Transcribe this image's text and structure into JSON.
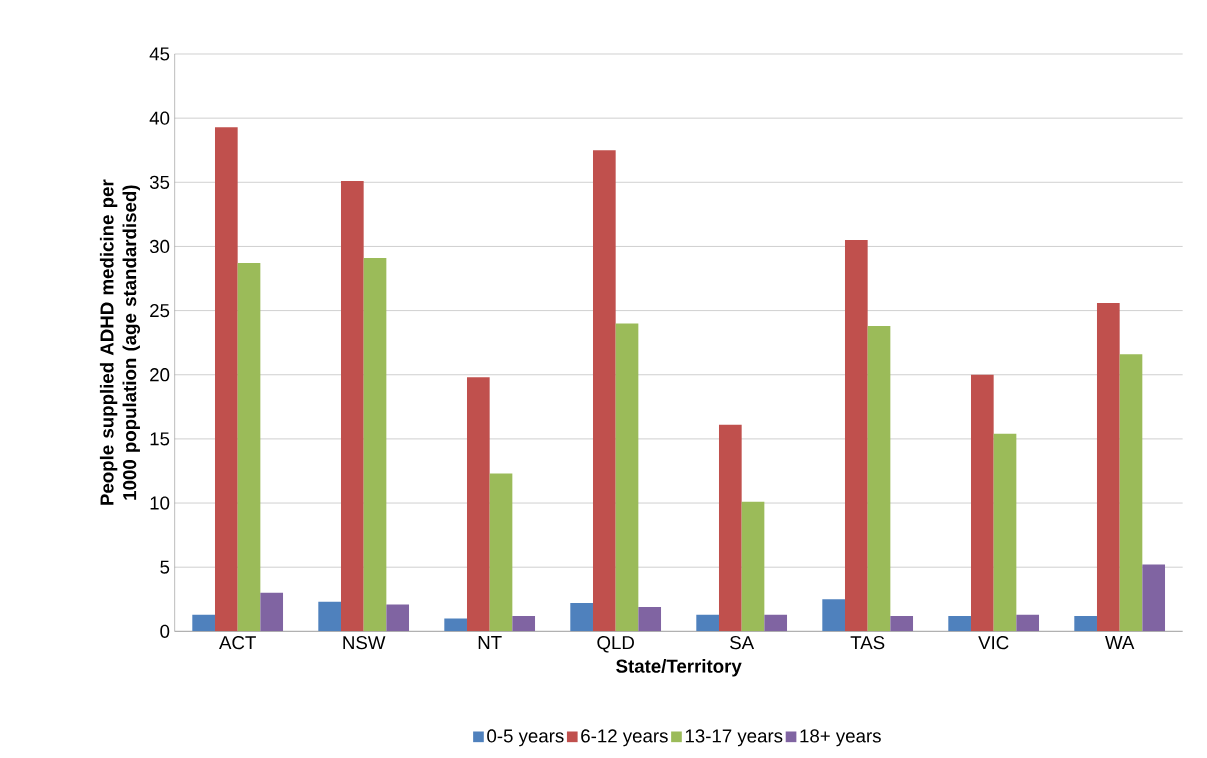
{
  "chart_data": {
    "type": "bar",
    "xlabel": "State/Territory",
    "ylabel": "People supplied ADHD medicine per 1000 population (age standardised)",
    "categories": [
      "ACT",
      "NSW",
      "NT",
      "QLD",
      "SA",
      "TAS",
      "VIC",
      "WA"
    ],
    "series": [
      {
        "name": "0-5 years",
        "color": "#4f81bd",
        "values": [
          1.3,
          2.3,
          1.0,
          2.2,
          1.3,
          2.5,
          1.2,
          1.2
        ]
      },
      {
        "name": "6-12 years",
        "color": "#c0504d",
        "values": [
          39.3,
          35.1,
          19.8,
          37.5,
          16.1,
          30.5,
          20.0,
          25.6
        ]
      },
      {
        "name": "13-17 years",
        "color": "#9bbb59",
        "values": [
          28.7,
          29.1,
          12.3,
          24.0,
          10.1,
          23.8,
          15.4,
          21.6
        ]
      },
      {
        "name": "18+ years",
        "color": "#8064a2",
        "values": [
          3.0,
          2.1,
          1.2,
          1.9,
          1.3,
          1.2,
          1.3,
          5.2
        ]
      }
    ],
    "ylim": [
      0,
      45
    ],
    "yticks": [
      0,
      5,
      10,
      15,
      20,
      25,
      30,
      35,
      40,
      45
    ],
    "grid": "y",
    "legend": "bottom"
  }
}
